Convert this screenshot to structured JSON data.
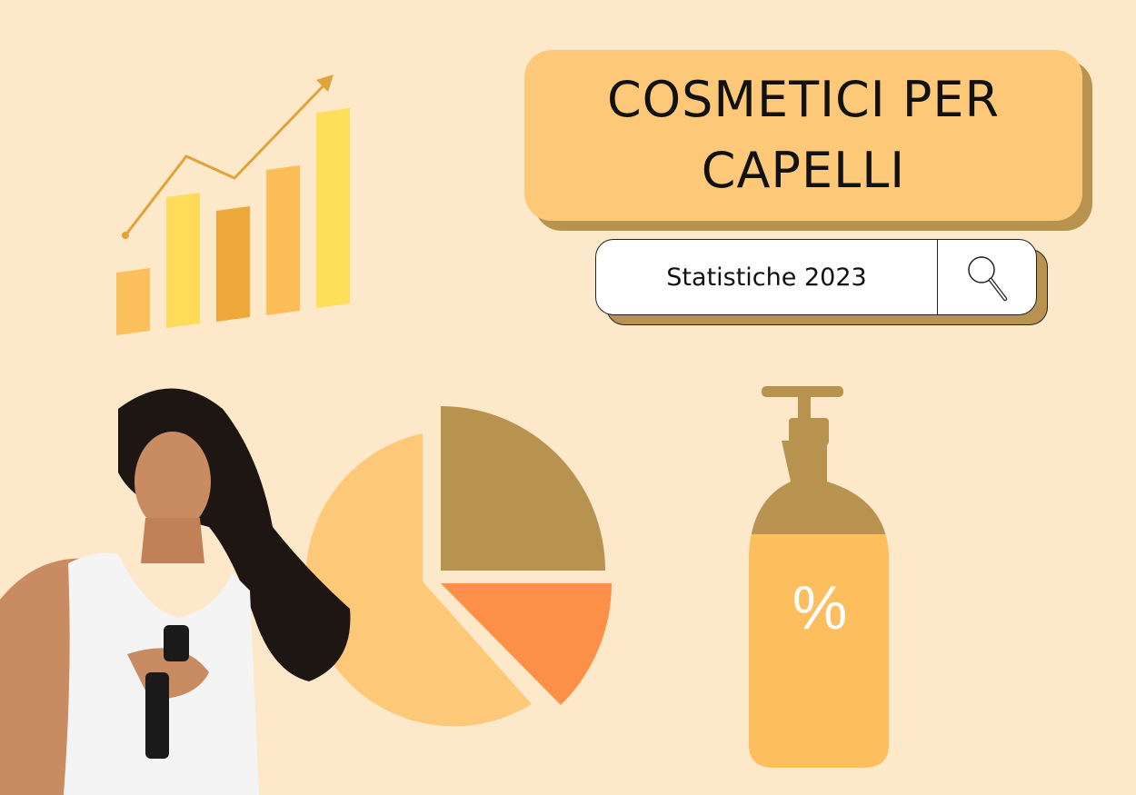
{
  "title": "COSMETICI PER CAPELLI",
  "search": {
    "value": "Statistiche 2023",
    "icon": "magnifier-icon"
  },
  "bottle": {
    "label": "%"
  },
  "colors": {
    "background": "#fde9c9",
    "title_fill": "#fdc978",
    "shadow": "#b8924f",
    "orange": "#fd9048",
    "yellow": "#fedc5a"
  }
}
